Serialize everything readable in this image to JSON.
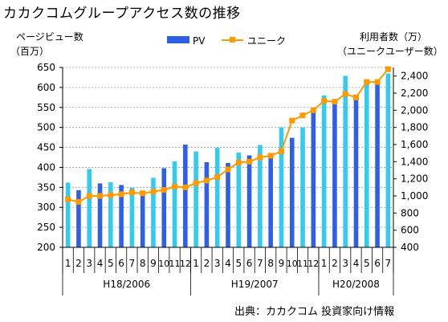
{
  "title": "カカクコムグループアクセス数の推移",
  "source": "出典：カカクコム 投資家向け情報",
  "colors": {
    "pv_light": "#33ccf0",
    "pv_dark": "#2f5fe6",
    "line": "#ff9900",
    "grid": "#999999"
  },
  "chart_data": {
    "type": "bar",
    "left_axis": {
      "label_line1": "ページビュー数",
      "label_line2": "（百万）",
      "min": 200,
      "max": 650,
      "ticks": [
        200,
        250,
        300,
        350,
        400,
        450,
        500,
        550,
        600,
        650
      ]
    },
    "right_axis": {
      "label_line1": "利用者数（万）",
      "label_line2": "（ユニークユーザー数）",
      "min": 400,
      "max": 2500,
      "ticks": [
        400,
        600,
        800,
        1000,
        1200,
        1400,
        1600,
        1800,
        2000,
        2200,
        2400
      ],
      "tick_labels": [
        "400",
        "600",
        "800",
        "1,000",
        "1,200",
        "1,400",
        "1,600",
        "1,800",
        "2,000",
        "2,200",
        "2,400"
      ]
    },
    "categories": [
      "1",
      "2",
      "3",
      "4",
      "5",
      "6",
      "7",
      "8",
      "9",
      "10",
      "11",
      "12",
      "1",
      "2",
      "3",
      "4",
      "5",
      "6",
      "7",
      "8",
      "9",
      "10",
      "11",
      "12",
      "1",
      "2",
      "3",
      "4",
      "5",
      "6",
      "7"
    ],
    "groups": [
      {
        "label": "H18/2006",
        "start": 0,
        "end": 11
      },
      {
        "label": "H19/2007",
        "start": 12,
        "end": 23
      },
      {
        "label": "H20/2008",
        "start": 24,
        "end": 30
      }
    ],
    "series": [
      {
        "name": "PV",
        "type": "bar",
        "values": [
          362,
          343,
          396,
          360,
          363,
          356,
          349,
          342,
          374,
          398,
          415,
          457,
          440,
          413,
          449,
          411,
          437,
          430,
          456,
          428,
          500,
          474,
          500,
          540,
          580,
          565,
          629,
          570,
          610,
          612,
          635
        ]
      },
      {
        "name": "ユニーク",
        "type": "line",
        "values": [
          960,
          930,
          1000,
          1000,
          1010,
          1020,
          1040,
          1030,
          1050,
          1070,
          1110,
          1100,
          1150,
          1180,
          1220,
          1310,
          1390,
          1400,
          1450,
          1470,
          1520,
          1880,
          1940,
          2000,
          2110,
          2100,
          2190,
          2150,
          2330,
          2330,
          2480
        ]
      }
    ],
    "legend": [
      "PV",
      "ユニーク"
    ],
    "legend_position": "top",
    "grid": true
  }
}
